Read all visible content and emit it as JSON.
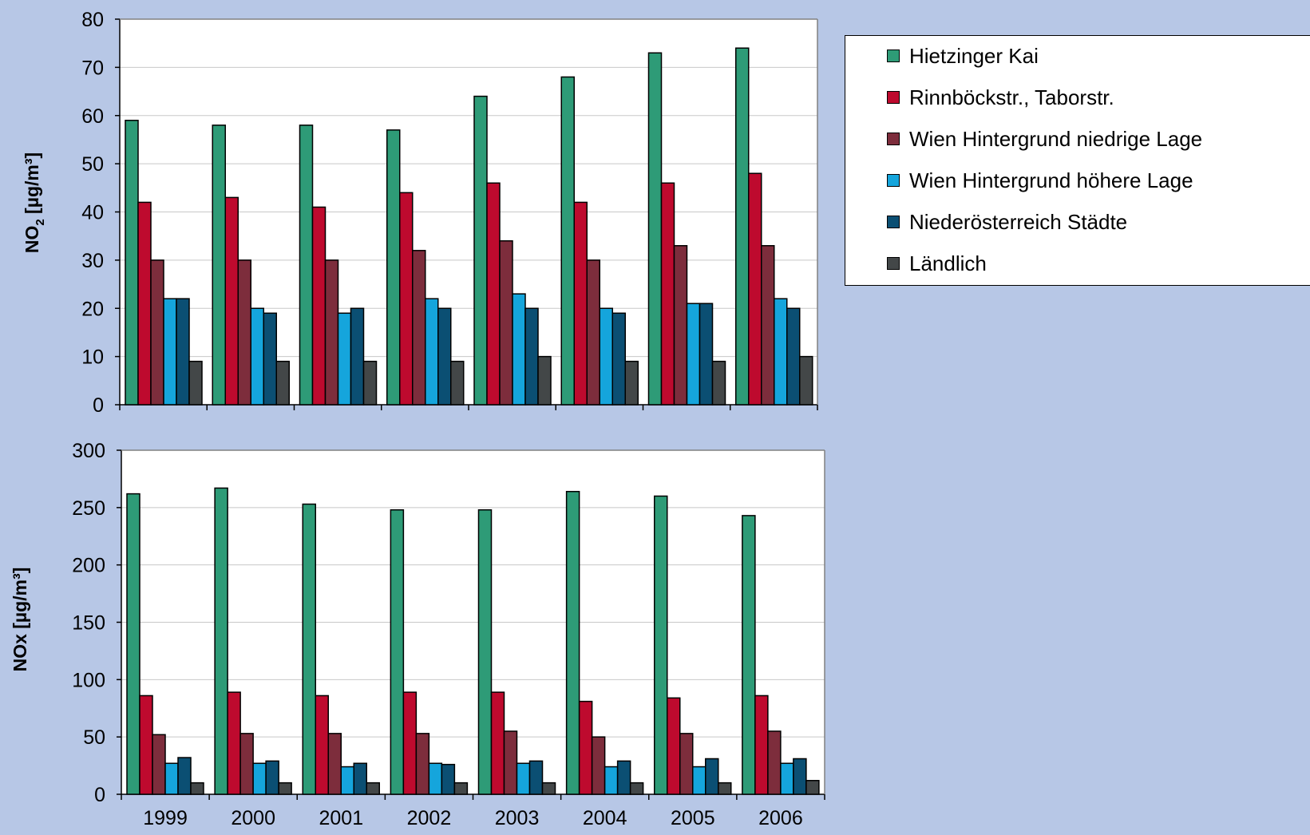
{
  "colors": {
    "background": "#b7c7e6",
    "plot_bg": "#ffffff",
    "grid": "#c8c8c8"
  },
  "chart_data": [
    {
      "type": "bar",
      "ylabel_main": "NO",
      "ylabel_sub": "2",
      "ylabel_unit": " [µg/m³]",
      "ylim": [
        0,
        80
      ],
      "yticks": [
        "0",
        "10",
        "20",
        "30",
        "40",
        "50",
        "60",
        "70",
        "80"
      ],
      "categories": [
        "1999",
        "2000",
        "2001",
        "2002",
        "2003",
        "2004",
        "2005",
        "2006"
      ],
      "series": [
        {
          "name": "Hietzinger Kai",
          "color": "#2e9b77",
          "values": [
            59,
            58,
            58,
            57,
            64,
            68,
            73,
            74
          ]
        },
        {
          "name": "Rinnböckstr., Taborstr.",
          "color": "#be0a2e",
          "values": [
            42,
            43,
            41,
            44,
            46,
            42,
            46,
            48
          ]
        },
        {
          "name": "Wien Hintergrund niedrige Lage",
          "color": "#7d2d3c",
          "values": [
            30,
            30,
            30,
            32,
            34,
            30,
            33,
            33
          ]
        },
        {
          "name": "Wien Hintergrund höhere Lage",
          "color": "#15a5dc",
          "values": [
            22,
            20,
            19,
            22,
            23,
            20,
            21,
            22
          ]
        },
        {
          "name": "Niederösterreich Städte",
          "color": "#0b4f73",
          "values": [
            22,
            19,
            20,
            20,
            20,
            19,
            21,
            20
          ]
        },
        {
          "name": "Ländlich",
          "color": "#434748",
          "values": [
            9,
            9,
            9,
            9,
            10,
            9,
            9,
            10
          ]
        }
      ],
      "legend_position": "right"
    },
    {
      "type": "bar",
      "ylabel": "NOx [µg/m³]",
      "ylim": [
        0,
        300
      ],
      "yticks": [
        "0",
        "50",
        "100",
        "150",
        "200",
        "250",
        "300"
      ],
      "categories": [
        "1999",
        "2000",
        "2001",
        "2002",
        "2003",
        "2004",
        "2005",
        "2006"
      ],
      "series": [
        {
          "name": "Hietzinger Kai",
          "color": "#2e9b77",
          "values": [
            262,
            267,
            253,
            248,
            248,
            264,
            260,
            243
          ]
        },
        {
          "name": "Rinnböckstr., Taborstr.",
          "color": "#be0a2e",
          "values": [
            86,
            89,
            86,
            89,
            89,
            81,
            84,
            86
          ]
        },
        {
          "name": "Wien Hintergrund niedrige Lage",
          "color": "#7d2d3c",
          "values": [
            52,
            53,
            53,
            53,
            55,
            50,
            53,
            55
          ]
        },
        {
          "name": "Wien Hintergrund höhere Lage",
          "color": "#15a5dc",
          "values": [
            27,
            27,
            24,
            27,
            27,
            24,
            24,
            27
          ]
        },
        {
          "name": "Niederösterreich Städte",
          "color": "#0b4f73",
          "values": [
            32,
            29,
            27,
            26,
            29,
            29,
            31,
            31
          ]
        },
        {
          "name": "Ländlich",
          "color": "#434748",
          "values": [
            10,
            10,
            10,
            10,
            10,
            10,
            10,
            12
          ]
        }
      ]
    }
  ],
  "legend": {
    "items": [
      {
        "label": "Hietzinger Kai",
        "color": "#2e9b77"
      },
      {
        "label": "Rinnböckstr., Taborstr.",
        "color": "#be0a2e"
      },
      {
        "label": "Wien Hintergrund niedrige Lage",
        "color": "#7d2d3c"
      },
      {
        "label": "Wien Hintergrund höhere Lage",
        "color": "#15a5dc"
      },
      {
        "label": "Niederösterreich Städte",
        "color": "#0b4f73"
      },
      {
        "label": "Ländlich",
        "color": "#434748"
      }
    ]
  }
}
